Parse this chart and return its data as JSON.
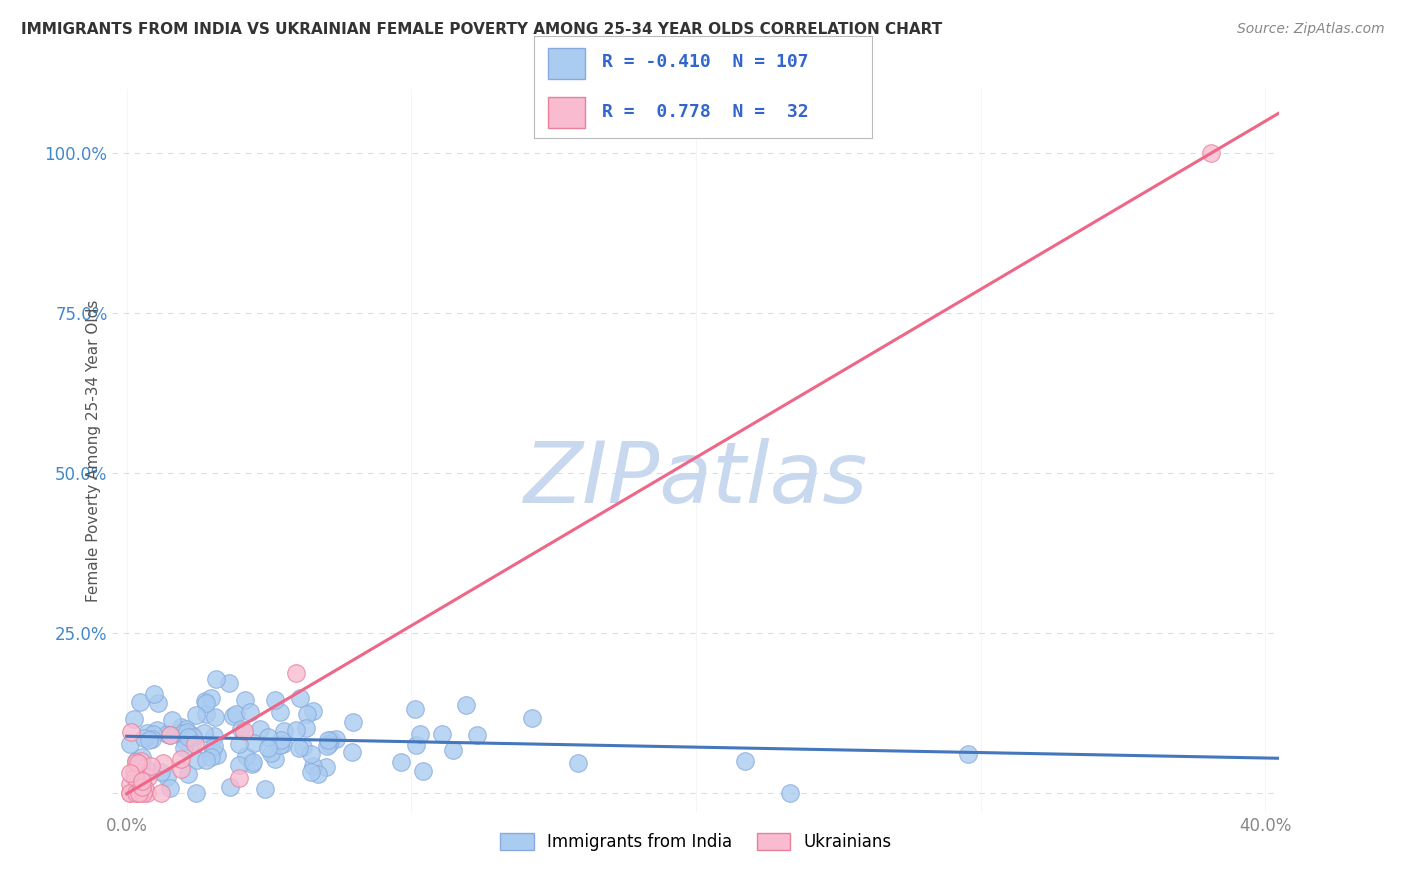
{
  "title": "IMMIGRANTS FROM INDIA VS UKRAINIAN FEMALE POVERTY AMONG 25-34 YEAR OLDS CORRELATION CHART",
  "source": "Source: ZipAtlas.com",
  "ylabel": "Female Poverty Among 25-34 Year Olds",
  "xlim": [
    -0.005,
    0.405
  ],
  "ylim": [
    -0.03,
    1.1
  ],
  "xtick_vals": [
    0.0,
    0.1,
    0.2,
    0.3,
    0.4
  ],
  "xticklabels": [
    "0.0%",
    "",
    "",
    "",
    "40.0%"
  ],
  "ytick_vals": [
    0.0,
    0.25,
    0.5,
    0.75,
    1.0
  ],
  "yticklabels": [
    "",
    "25.0%",
    "50.0%",
    "75.0%",
    "100.0%"
  ],
  "legend_r1": "-0.410",
  "legend_n1": "107",
  "legend_r2": "0.778",
  "legend_n2": "32",
  "series1_color": "#aaccf0",
  "series1_edge": "#88aadd",
  "series2_color": "#f8bbd0",
  "series2_edge": "#e8809a",
  "trendline1_color": "#4477bb",
  "trendline2_color": "#ee6688",
  "trendline1_slope": -0.085,
  "trendline1_intercept": 0.088,
  "trendline2_slope": 2.63,
  "trendline2_intercept": -0.002,
  "watermark": "ZIPatlas",
  "watermark_color": "#c8d8ee",
  "background_color": "#ffffff",
  "grid_color": "#dddddd",
  "title_color": "#333333",
  "axis_label_color": "#555555",
  "tick_color": "#888888",
  "legend_text_color": "#3366cc",
  "label_color_right": "#4488cc"
}
